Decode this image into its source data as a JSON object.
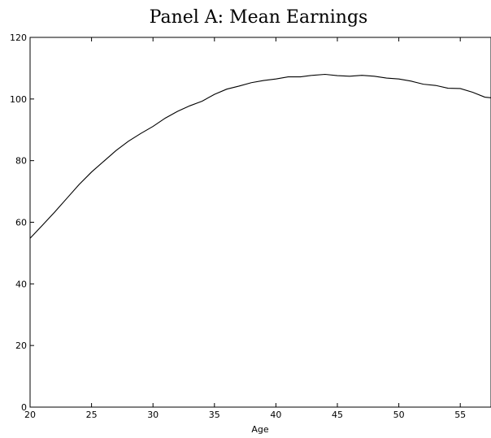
{
  "chart_data": {
    "type": "line",
    "title": "Panel A: Mean Earnings",
    "xlabel": "Age",
    "ylabel": "",
    "xlim": [
      20,
      57.5
    ],
    "ylim": [
      0,
      120
    ],
    "x_ticks": [
      "20",
      "25",
      "30",
      "35",
      "40",
      "45",
      "50",
      "55"
    ],
    "y_ticks": [
      "0",
      "20",
      "40",
      "60",
      "80",
      "100",
      "120"
    ],
    "grid": false,
    "legend": "none",
    "line_color": "#000000",
    "series": [
      {
        "x": [
          20,
          21,
          22,
          23,
          24,
          25,
          26,
          27,
          28,
          29,
          30,
          31,
          32,
          33,
          34,
          35,
          36,
          37,
          38,
          39,
          40,
          41,
          42,
          43,
          44,
          45,
          46,
          47,
          48,
          49,
          50,
          51,
          52,
          53,
          54,
          55,
          56,
          57,
          57.5
        ],
        "y": [
          54.8,
          59.0,
          63.3,
          67.8,
          72.3,
          76.3,
          79.8,
          83.3,
          86.3,
          88.8,
          91.1,
          93.8,
          96.0,
          97.8,
          99.3,
          101.5,
          103.2,
          104.2,
          105.3,
          106.0,
          106.5,
          107.2,
          107.2,
          107.7,
          108.0,
          107.6,
          107.4,
          107.7,
          107.4,
          106.8,
          106.5,
          105.8,
          104.8,
          104.4,
          103.5,
          103.4,
          102.2,
          100.6,
          100.4
        ]
      }
    ]
  }
}
